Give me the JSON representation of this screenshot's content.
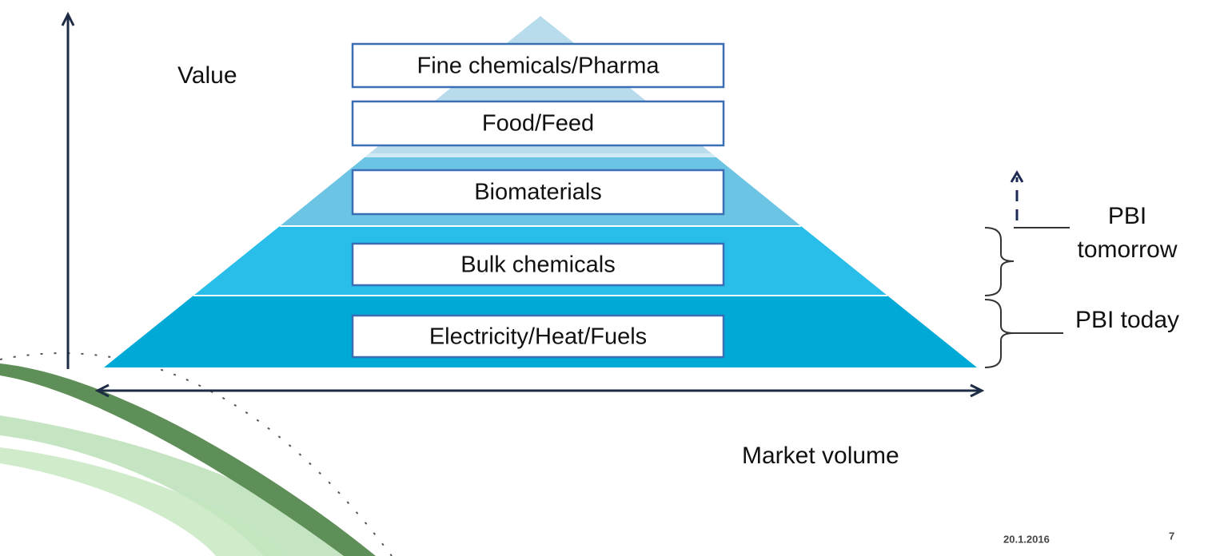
{
  "axes": {
    "y_label": "Value",
    "x_label": "Market volume"
  },
  "levels": [
    "Fine chemicals/Pharma",
    "Food/Feed",
    "Biomaterials",
    "Bulk chemicals",
    "Electricity/Heat/Fuels"
  ],
  "brackets": {
    "tomorrow": [
      "PBI",
      "tomorrow"
    ],
    "today": "PBI today"
  },
  "footer": {
    "date": "20.1.2016",
    "page": "7"
  }
}
